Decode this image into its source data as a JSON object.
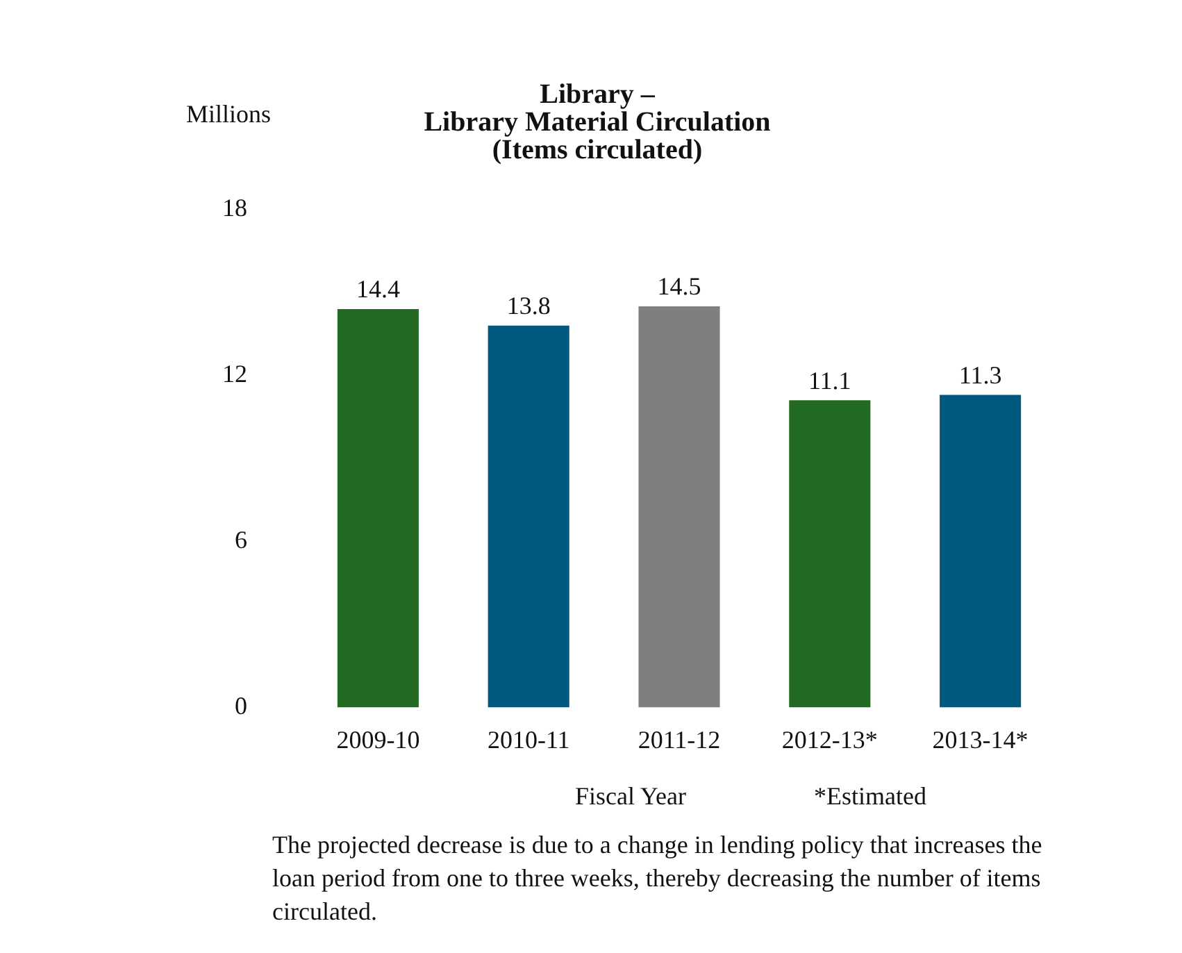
{
  "chart_data": {
    "type": "bar",
    "title": "Library –\nLibrary Material Circulation\n(Items circulated)",
    "ylabel": "Millions",
    "xlabel": "Fiscal Year",
    "categories": [
      "2009-10",
      "2010-11",
      "2011-12",
      "2012-13*",
      "2013-14*"
    ],
    "values": [
      14.4,
      13.8,
      14.5,
      11.1,
      11.3
    ],
    "colors": [
      "#236b23",
      "#005a80",
      "#7f7f80",
      "#236b23",
      "#005a80"
    ],
    "ylim": [
      0,
      18
    ],
    "yticks": [
      0,
      6,
      12,
      18
    ],
    "grid": false,
    "legend": false,
    "data_labels": true,
    "annotations": [
      "*Estimated",
      "The projected decrease is due to a change in lending policy that increases the loan period from one to three weeks, thereby decreasing the number of items circulated."
    ]
  }
}
